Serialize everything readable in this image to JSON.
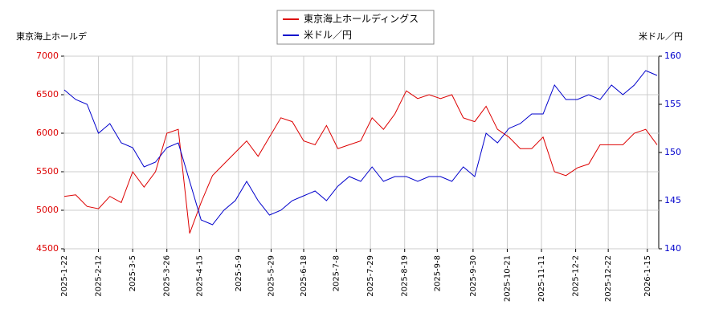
{
  "chart_data": {
    "type": "line",
    "y_label": "東京海上ホールデ",
    "y2_label": "米ドル／円",
    "x": [
      "2025-01-22",
      "2025-01-29",
      "2025-02-05",
      "2025-02-12",
      "2025-02-19",
      "2025-02-26",
      "2025-03-05",
      "2025-03-12",
      "2025-03-19",
      "2025-03-26",
      "2025-04-02",
      "2025-04-09",
      "2025-04-16",
      "2025-04-23",
      "2025-04-30",
      "2025-05-07",
      "2025-05-14",
      "2025-05-21",
      "2025-05-28",
      "2025-06-04",
      "2025-06-11",
      "2025-06-18",
      "2025-06-25",
      "2025-07-02",
      "2025-07-09",
      "2025-07-16",
      "2025-07-23",
      "2025-07-30",
      "2025-08-06",
      "2025-08-13",
      "2025-08-20",
      "2025-08-27",
      "2025-09-03",
      "2025-09-10",
      "2025-09-17",
      "2025-09-24",
      "2025-10-01",
      "2025-10-08",
      "2025-10-15",
      "2025-10-22",
      "2025-10-29",
      "2025-11-05",
      "2025-11-12",
      "2025-11-19",
      "2025-11-26",
      "2025-12-03",
      "2025-12-10",
      "2025-12-17",
      "2025-12-24",
      "2025-12-31",
      "2026-01-07",
      "2026-01-14",
      "2026-01-21"
    ],
    "series": [
      {
        "name": "東京海上ホールディングス",
        "color": "#dd0000",
        "axis": "y",
        "values": [
          5180,
          5200,
          5050,
          5020,
          5180,
          5100,
          5500,
          5300,
          5500,
          6000,
          6050,
          4700,
          5100,
          5450,
          5600,
          5750,
          5900,
          5700,
          5950,
          6200,
          6150,
          5900,
          5850,
          6100,
          5800,
          5850,
          5900,
          6200,
          6050,
          6250,
          6550,
          6450,
          6500,
          6450,
          6500,
          6200,
          6150,
          6350,
          6050,
          5950,
          5800,
          5800,
          5950,
          5500,
          5450,
          5550,
          5600,
          5850,
          5850,
          5850,
          6000,
          6050,
          5850
        ]
      },
      {
        "name": "米ドル／円",
        "color": "#0000cc",
        "axis": "y2",
        "values": [
          156.5,
          155.5,
          155,
          152,
          153,
          151,
          150.5,
          148.5,
          149,
          150.5,
          151,
          147,
          143,
          142.5,
          144,
          145,
          147,
          145,
          143.5,
          144,
          145,
          145.5,
          146,
          145,
          146.5,
          147.5,
          147,
          148.5,
          147,
          147.5,
          147.5,
          147,
          147.5,
          147.5,
          147,
          148.5,
          147.5,
          152,
          151,
          152.5,
          153,
          154,
          154,
          157,
          155.5,
          155.5,
          156,
          155.5,
          157,
          156,
          157,
          158.5,
          158
        ]
      }
    ],
    "xlim": [
      "2025-01-22",
      "2026-01-22"
    ],
    "xticks": [
      {
        "value": "2025-01-22",
        "label": "2025-1-22"
      },
      {
        "value": "2025-02-12",
        "label": "2025-2-12"
      },
      {
        "value": "2025-03-05",
        "label": "2025-3-5"
      },
      {
        "value": "2025-03-26",
        "label": "2025-3-26"
      },
      {
        "value": "2025-04-15",
        "label": "2025-4-15"
      },
      {
        "value": "2025-05-09",
        "label": "2025-5-9"
      },
      {
        "value": "2025-05-29",
        "label": "2025-5-29"
      },
      {
        "value": "2025-06-18",
        "label": "2025-6-18"
      },
      {
        "value": "2025-07-08",
        "label": "2025-7-8"
      },
      {
        "value": "2025-07-29",
        "label": "2025-7-29"
      },
      {
        "value": "2025-08-19",
        "label": "2025-8-19"
      },
      {
        "value": "2025-09-08",
        "label": "2025-9-8"
      },
      {
        "value": "2025-09-30",
        "label": "2025-9-30"
      },
      {
        "value": "2025-10-21",
        "label": "2025-10-21"
      },
      {
        "value": "2025-11-11",
        "label": "2025-11-11"
      },
      {
        "value": "2025-12-02",
        "label": "2025-12-2"
      },
      {
        "value": "2025-12-22",
        "label": "2025-12-22"
      },
      {
        "value": "2026-01-15",
        "label": "2026-1-15"
      }
    ],
    "ylim": [
      4500,
      7000
    ],
    "yticks": [
      4500,
      5000,
      5500,
      6000,
      6500,
      7000
    ],
    "y2lim": [
      140,
      160
    ],
    "y2ticks": [
      140,
      145,
      150,
      155,
      160
    ],
    "grid": true
  }
}
